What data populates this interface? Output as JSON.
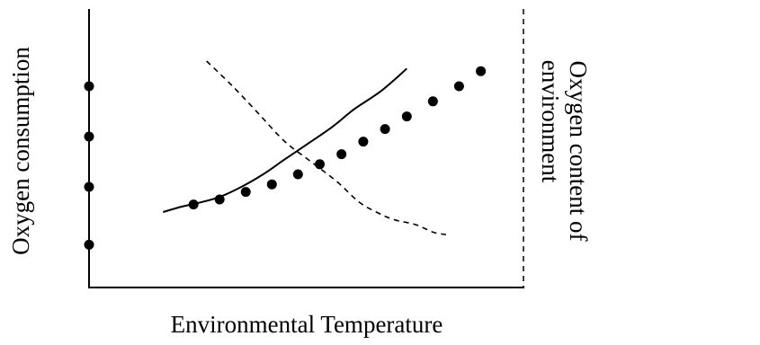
{
  "chart_data": {
    "type": "line",
    "xlabel": "Environmental Temperature",
    "ylabel": "Oxygen consumption",
    "ylabel_right": [
      "Oxygen content of",
      "environment"
    ],
    "xlim": [
      0,
      100
    ],
    "ylim": [
      0,
      100
    ],
    "axis_ticks": [
      17,
      40,
      60,
      80
    ],
    "grid": false,
    "series": [
      {
        "style": "solid",
        "curve": [
          [
            17,
            30
          ],
          [
            21,
            32
          ],
          [
            26,
            34
          ],
          [
            30,
            36
          ],
          [
            35,
            40
          ],
          [
            40,
            45
          ],
          [
            45,
            51
          ],
          [
            51,
            58
          ],
          [
            56,
            64
          ],
          [
            61,
            71
          ],
          [
            67,
            78
          ],
          [
            73,
            87
          ]
        ],
        "markers": [
          [
            24,
            33
          ],
          [
            30,
            35
          ],
          [
            36,
            38
          ],
          [
            42,
            41
          ],
          [
            48,
            45
          ],
          [
            53,
            49
          ],
          [
            58,
            53
          ],
          [
            63,
            58
          ],
          [
            68,
            63
          ],
          [
            73,
            68
          ],
          [
            79,
            74
          ],
          [
            85,
            80
          ],
          [
            90,
            86
          ]
        ]
      },
      {
        "style": "dashed",
        "curve": [
          [
            27,
            90
          ],
          [
            33,
            80
          ],
          [
            39,
            69
          ],
          [
            45,
            58
          ],
          [
            51,
            50
          ],
          [
            57,
            42
          ],
          [
            62,
            34
          ],
          [
            66,
            30
          ],
          [
            70,
            27
          ],
          [
            75,
            25
          ],
          [
            79,
            22
          ],
          [
            82,
            21
          ]
        ]
      }
    ],
    "colors": {
      "ink": "#000000",
      "background": "#ffffff"
    }
  }
}
